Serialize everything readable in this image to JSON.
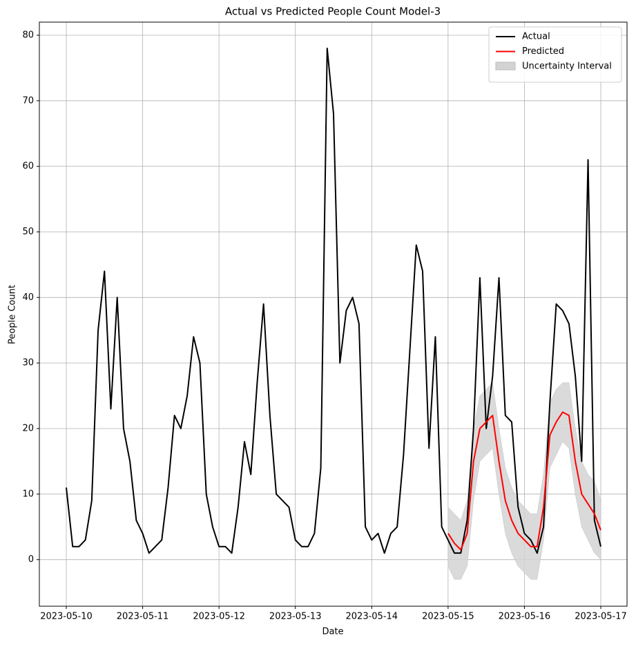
{
  "chart_data": {
    "type": "line",
    "title": "Actual vs Predicted People Count Model-3",
    "x_label": "Date",
    "y_label": "People Count",
    "xlim": [
      "2023-05-09 15:32",
      "2023-05-17 08:15"
    ],
    "xticks": [
      "2023-05-10",
      "2023-05-11",
      "2023-05-12",
      "2023-05-13",
      "2023-05-14",
      "2023-05-15",
      "2023-05-16",
      "2023-05-17"
    ],
    "ylim": [
      -7.1,
      82
    ],
    "yticks": [
      0,
      10,
      20,
      30,
      40,
      50,
      60,
      70,
      80
    ],
    "grid": true,
    "legend": "upper right",
    "series": [
      {
        "name": "Actual",
        "color": "#000000",
        "x": [
          "2023-05-10 00:00",
          "2023-05-10 02:00",
          "2023-05-10 04:00",
          "2023-05-10 06:00",
          "2023-05-10 08:00",
          "2023-05-10 10:00",
          "2023-05-10 12:00",
          "2023-05-10 14:00",
          "2023-05-10 16:00",
          "2023-05-10 18:00",
          "2023-05-10 20:00",
          "2023-05-10 22:00",
          "2023-05-11 00:00",
          "2023-05-11 02:00",
          "2023-05-11 04:00",
          "2023-05-11 06:00",
          "2023-05-11 08:00",
          "2023-05-11 10:00",
          "2023-05-11 12:00",
          "2023-05-11 14:00",
          "2023-05-11 16:00",
          "2023-05-11 18:00",
          "2023-05-11 20:00",
          "2023-05-11 22:00",
          "2023-05-12 00:00",
          "2023-05-12 02:00",
          "2023-05-12 04:00",
          "2023-05-12 06:00",
          "2023-05-12 08:00",
          "2023-05-12 10:00",
          "2023-05-12 12:00",
          "2023-05-12 14:00",
          "2023-05-12 16:00",
          "2023-05-12 18:00",
          "2023-05-12 20:00",
          "2023-05-12 22:00",
          "2023-05-13 00:00",
          "2023-05-13 02:00",
          "2023-05-13 04:00",
          "2023-05-13 06:00",
          "2023-05-13 08:00",
          "2023-05-13 10:00",
          "2023-05-13 12:00",
          "2023-05-13 14:00",
          "2023-05-13 16:00",
          "2023-05-13 18:00",
          "2023-05-13 20:00",
          "2023-05-13 22:00",
          "2023-05-14 00:00",
          "2023-05-14 02:00",
          "2023-05-14 04:00",
          "2023-05-14 06:00",
          "2023-05-14 08:00",
          "2023-05-14 10:00",
          "2023-05-14 12:00",
          "2023-05-14 14:00",
          "2023-05-14 16:00",
          "2023-05-14 18:00",
          "2023-05-14 20:00",
          "2023-05-14 22:00",
          "2023-05-15 00:00",
          "2023-05-15 02:00",
          "2023-05-15 04:00",
          "2023-05-15 06:00",
          "2023-05-15 08:00",
          "2023-05-15 10:00",
          "2023-05-15 12:00",
          "2023-05-15 14:00",
          "2023-05-15 16:00",
          "2023-05-15 18:00",
          "2023-05-15 20:00",
          "2023-05-15 22:00",
          "2023-05-16 00:00",
          "2023-05-16 02:00",
          "2023-05-16 04:00",
          "2023-05-16 06:00",
          "2023-05-16 08:00",
          "2023-05-16 10:00",
          "2023-05-16 12:00",
          "2023-05-16 14:00",
          "2023-05-16 16:00",
          "2023-05-16 18:00",
          "2023-05-16 20:00",
          "2023-05-16 22:00",
          "2023-05-17 00:00"
        ],
        "values": [
          11,
          2,
          2,
          3,
          9,
          35,
          44,
          23,
          40,
          20,
          15,
          6,
          4,
          1,
          2,
          3,
          11,
          22,
          20,
          25,
          34,
          30,
          10,
          5,
          2,
          2,
          1,
          8,
          18,
          13,
          27,
          39,
          22,
          10,
          9,
          8,
          3,
          2,
          2,
          4,
          14,
          78,
          68,
          30,
          38,
          40,
          36,
          5,
          3,
          4,
          1,
          4,
          5,
          16,
          32,
          48,
          44,
          17,
          34,
          5,
          3,
          1,
          1,
          6,
          20,
          43,
          20,
          28,
          43,
          22,
          21,
          8,
          4,
          3,
          1,
          5,
          24,
          39,
          38,
          36,
          28,
          15,
          61,
          6,
          2
        ]
      },
      {
        "name": "Predicted",
        "color": "#ff0000",
        "x": [
          "2023-05-15 00:00",
          "2023-05-15 02:00",
          "2023-05-15 04:00",
          "2023-05-15 06:00",
          "2023-05-15 08:00",
          "2023-05-15 10:00",
          "2023-05-15 12:00",
          "2023-05-15 14:00",
          "2023-05-15 16:00",
          "2023-05-15 18:00",
          "2023-05-15 20:00",
          "2023-05-15 22:00",
          "2023-05-16 00:00",
          "2023-05-16 02:00",
          "2023-05-16 04:00",
          "2023-05-16 06:00",
          "2023-05-16 08:00",
          "2023-05-16 10:00",
          "2023-05-16 12:00",
          "2023-05-16 14:00",
          "2023-05-16 16:00",
          "2023-05-16 18:00",
          "2023-05-16 20:00",
          "2023-05-16 22:00",
          "2023-05-17 00:00"
        ],
        "values": [
          4,
          2.5,
          1.5,
          4,
          15,
          20,
          21,
          22,
          15,
          9,
          6,
          4,
          3,
          2,
          2,
          8,
          19,
          21,
          22.5,
          22,
          15,
          10,
          8.5,
          7,
          4.5
        ]
      },
      {
        "name": "Uncertainty Interval",
        "color": "#d3d3d3",
        "x": [
          "2023-05-15 00:00",
          "2023-05-15 02:00",
          "2023-05-15 04:00",
          "2023-05-15 06:00",
          "2023-05-15 08:00",
          "2023-05-15 10:00",
          "2023-05-15 12:00",
          "2023-05-15 14:00",
          "2023-05-15 16:00",
          "2023-05-15 18:00",
          "2023-05-15 20:00",
          "2023-05-15 22:00",
          "2023-05-16 00:00",
          "2023-05-16 02:00",
          "2023-05-16 04:00",
          "2023-05-16 06:00",
          "2023-05-16 08:00",
          "2023-05-16 10:00",
          "2023-05-16 12:00",
          "2023-05-16 14:00",
          "2023-05-16 16:00",
          "2023-05-16 18:00",
          "2023-05-16 20:00",
          "2023-05-16 22:00",
          "2023-05-17 00:00"
        ],
        "lower": [
          -1,
          -3,
          -3,
          -1,
          9,
          15,
          16,
          17,
          10,
          4,
          1,
          -1,
          -2,
          -3,
          -3,
          3,
          14,
          16,
          18,
          17,
          10,
          5,
          3,
          1,
          0
        ],
        "upper": [
          8,
          7,
          6,
          9,
          20,
          25,
          26,
          27,
          20,
          14,
          11,
          9,
          8,
          7,
          7,
          13,
          24,
          26,
          27,
          27,
          20,
          15,
          13,
          12,
          9
        ]
      }
    ]
  }
}
